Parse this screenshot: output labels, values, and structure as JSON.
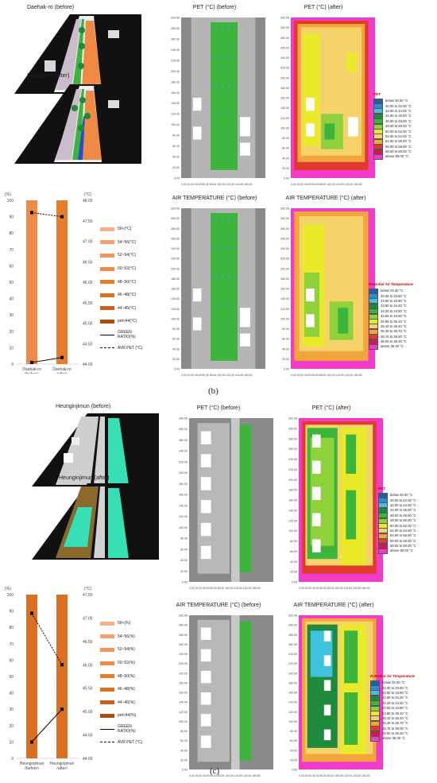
{
  "section_b": {
    "render_before_label": "Daehak-ro (before)",
    "render_after_label": "Daehak-ro (after)",
    "pet_before_title": "PET (°C) (before)",
    "pet_after_title": "PET (°C) (after)",
    "air_before_title": "AIR TEMPERATURE (°C) (before)",
    "air_after_title": "AIR TEMPERATURE (°C) (after)",
    "caption": "(b)"
  },
  "section_c": {
    "render_before_label": "Heunginjimun (before)",
    "render_after_label": "Heunginjimun (after)",
    "pet_before_title": "PET (°C) (before)",
    "pet_after_title": "PET (°C) (after)",
    "air_before_title": "AIR TEMPERATURE (°C) (before)",
    "air_after_title": "AIR TEMPERATURE (°C) (after)",
    "caption": "(c)"
  },
  "pet_legend": {
    "title": "PET",
    "items": [
      {
        "label": "below 40.00 °C",
        "color": "#1f5fa8"
      },
      {
        "label": "40.00 to 42.00 °C",
        "color": "#2a8cd6"
      },
      {
        "label": "42.00 to 44.00 °C",
        "color": "#3fc1e0"
      },
      {
        "label": "44.00 to 46.00 °C",
        "color": "#1e8a3c"
      },
      {
        "label": "46.00 to 48.00 °C",
        "color": "#3cb53c"
      },
      {
        "label": "48.00 to 50.00 °C",
        "color": "#8fd13a"
      },
      {
        "label": "50.00 to 52.00 °C",
        "color": "#e8ea2a"
      },
      {
        "label": "52.00 to 54.00 °C",
        "color": "#f5d36a"
      },
      {
        "label": "54.00 to 56.00 °C",
        "color": "#f2a53a"
      },
      {
        "label": "56.00 to 58.00 °C",
        "color": "#e23a2a"
      },
      {
        "label": "58.00 to 60.00 °C",
        "color": "#d8145a"
      },
      {
        "label": "above 60.00 °C",
        "color": "#f03cc8"
      }
    ]
  },
  "air_legend": {
    "title": "Potential Air Temperature",
    "items": [
      {
        "label": "below 33.30 °C",
        "color": "#1f5fa8"
      },
      {
        "label": "33.30 to 33.60 °C",
        "color": "#2a8cd6"
      },
      {
        "label": "33.60 to 33.90 °C",
        "color": "#3fc1e0"
      },
      {
        "label": "33.90 to 34.20 °C",
        "color": "#1e8a3c"
      },
      {
        "label": "34.20 to 34.50 °C",
        "color": "#3cb53c"
      },
      {
        "label": "34.50 to 34.80 °C",
        "color": "#8fd13a"
      },
      {
        "label": "34.80 to 35.10 °C",
        "color": "#e8ea2a"
      },
      {
        "label": "35.10 to 35.40 °C",
        "color": "#f5d36a"
      },
      {
        "label": "35.40 to 35.70 °C",
        "color": "#f2a53a"
      },
      {
        "label": "35.70 to 36.00 °C",
        "color": "#e23a2a"
      },
      {
        "label": "36.00 to 36.30 °C",
        "color": "#d8145a"
      },
      {
        "label": "above 36.30 °C",
        "color": "#f03cc8"
      }
    ]
  },
  "air_legend_c": {
    "title": "Potential Air Temperature",
    "items": [
      {
        "label": "below 33.30 °C",
        "color": "#1f5fa8"
      },
      {
        "label": "33.30 to 33.60 °C",
        "color": "#2a8cd6"
      },
      {
        "label": "33.60 to 33.90 °C",
        "color": "#3fc1e0"
      },
      {
        "label": "33.90 to 34.20 °C",
        "color": "#1e8a3c"
      },
      {
        "label": "34.20 to 34.50 °C",
        "color": "#3cb53c"
      },
      {
        "label": "34.50 to 34.80 °C",
        "color": "#8fd13a"
      },
      {
        "label": "34.80 to 35.10 °C",
        "color": "#e8ea2a"
      },
      {
        "label": "35.10 to 35.40 °C",
        "color": "#f5d36a"
      },
      {
        "label": "35.40 to 35.70 °C",
        "color": "#f2a53a"
      },
      {
        "label": "35.70 to 36.00 °C",
        "color": "#e23a2a"
      },
      {
        "label": "36.00 to 36.30 °C",
        "color": "#d8145a"
      },
      {
        "label": "above 36.30 °C",
        "color": "#f03cc8"
      }
    ]
  },
  "bar_legend_b": {
    "items": [
      {
        "label": "56<(°C)",
        "color": "#f4b183"
      },
      {
        "label": "54~56(°C)",
        "color": "#f4a36c"
      },
      {
        "label": "52~54(°C)",
        "color": "#f29558"
      },
      {
        "label": "50~52(°C)",
        "color": "#ef8a45"
      },
      {
        "label": "48~50(°C)",
        "color": "#ea7c2e"
      },
      {
        "label": "46~48(°C)",
        "color": "#dd6f22"
      },
      {
        "label": "44~46(°C)",
        "color": "#c9601b"
      },
      {
        "label": "pet<44(°C)",
        "color": "#a94f14"
      },
      {
        "label": "GREEN RATIO(%)",
        "color": "#000000"
      },
      {
        "label": "AVR PET (°C)",
        "color": "#000000"
      }
    ]
  },
  "bar_legend_c": {
    "items": [
      {
        "label": "56<(%)",
        "color": "#f4b183"
      },
      {
        "label": "54~56(%)",
        "color": "#f4a36c"
      },
      {
        "label": "52~54(%)",
        "color": "#f29558"
      },
      {
        "label": "50~52(%)",
        "color": "#ef8a45"
      },
      {
        "label": "48~50(%)",
        "color": "#ea7c2e"
      },
      {
        "label": "46~48(%)",
        "color": "#dd6f22"
      },
      {
        "label": "44~46(%)",
        "color": "#c9601b"
      },
      {
        "label": "pet<44(%)",
        "color": "#a94f14"
      },
      {
        "label": "GREEN RATIO(%)",
        "color": "#000000"
      },
      {
        "label": "AVR PET (°C)",
        "color": "#000000"
      }
    ]
  },
  "chart_data": [
    {
      "type": "bar",
      "categories": [
        "Daehak-ro\n(before)",
        "Daehak-ro\n(after)"
      ],
      "ylabel_left": "(%)",
      "ylabel_right": "(°C)",
      "ylim": [
        0,
        100
      ],
      "y_ticks": [
        "0",
        "10",
        "20",
        "30",
        "40",
        "50",
        "60",
        "70",
        "80",
        "90",
        "100"
      ],
      "y2lim": [
        44.0,
        48.0
      ],
      "y2_ticks": [
        "44.00",
        "44.50",
        "45.00",
        "45.50",
        "46.00",
        "46.50",
        "47.00",
        "47.50",
        "48.00"
      ],
      "green_ratio": [
        1,
        4
      ],
      "avr_pet": [
        47.7,
        47.6
      ],
      "bar_colors": [
        "#ef8a45",
        "#ea7c2e"
      ]
    },
    {
      "type": "bar",
      "categories": [
        "Heunginjimun\n(before)",
        "Heunginjimun\n(after)"
      ],
      "ylabel_left": "(%)",
      "ylabel_right": "(°C)",
      "ylim": [
        0,
        100
      ],
      "y_ticks": [
        "0",
        "10",
        "20",
        "30",
        "40",
        "50",
        "60",
        "70",
        "80",
        "90",
        "100"
      ],
      "y2lim": [
        44.0,
        47.5
      ],
      "y2_ticks": [
        "44.00",
        "44.50",
        "45.00",
        "45.50",
        "46.00",
        "46.50",
        "47.00",
        "47.50"
      ],
      "green_ratio": [
        10,
        30
      ],
      "avr_pet": [
        47.1,
        46.0
      ],
      "bar_colors": [
        "#dd6f22",
        "#dd6f22"
      ]
    }
  ],
  "map_axes": {
    "y_ticks_300": [
      "300.00",
      "280.00",
      "260.00",
      "240.00",
      "220.00",
      "200.00",
      "180.00",
      "160.00",
      "140.00",
      "120.00",
      "100.00",
      "80.00",
      "60.00",
      "40.00",
      "20.00",
      "0.00"
    ],
    "y_ticks_320": [
      "320.00",
      "300.00",
      "280.00",
      "260.00",
      "240.00",
      "220.00",
      "200.00",
      "180.00",
      "160.00",
      "140.00",
      "120.00",
      "100.00",
      "80.00",
      "60.00",
      "40.00",
      "20.00",
      "0.00"
    ],
    "x_ticks": "0.00 20.00 40.00 60.00 80.00 100.00 120.00 140.00 160.00"
  }
}
